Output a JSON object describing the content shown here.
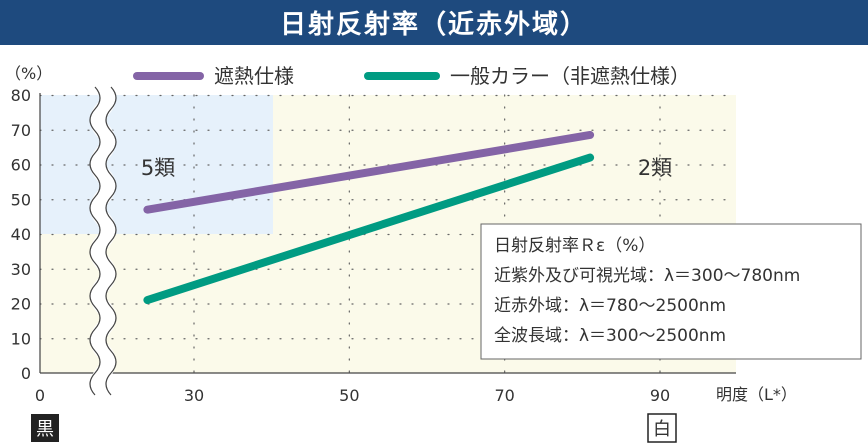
{
  "title": "日射反射率（近赤外域）",
  "chart_data": {
    "type": "line",
    "title": "日射反射率（近赤外域）",
    "ylabel": "（%）",
    "xlabel": "明度（L*）",
    "ylim": [
      0,
      80
    ],
    "xlim": [
      0,
      90
    ],
    "y_ticks": [
      0,
      10,
      20,
      30,
      40,
      50,
      60,
      70,
      80
    ],
    "x_ticks": [
      0,
      30,
      50,
      70,
      90
    ],
    "series": [
      {
        "name": "遮熱仕様",
        "color": "#8464a6",
        "x": [
          24,
          81
        ],
        "y": [
          47,
          68.5
        ]
      },
      {
        "name": "一般カラー（非遮熱仕様）",
        "color": "#009b82",
        "x": [
          24,
          81
        ],
        "y": [
          21,
          62
        ]
      }
    ],
    "regions": [
      {
        "label": "5類",
        "color": "#e6f1fb"
      },
      {
        "label": "2類",
        "color": "#fbfaea"
      }
    ],
    "legend_position": "top",
    "grid": "dotted",
    "axis_end_labels": {
      "left": "黒",
      "right": "白"
    },
    "notes": [
      "日射反射率Ｒε（%）",
      "近紫外及び可視光域：λ＝300〜780nm",
      "近赤外域：λ＝780〜2500nm",
      "全波長域：λ＝300〜2500nm"
    ]
  }
}
